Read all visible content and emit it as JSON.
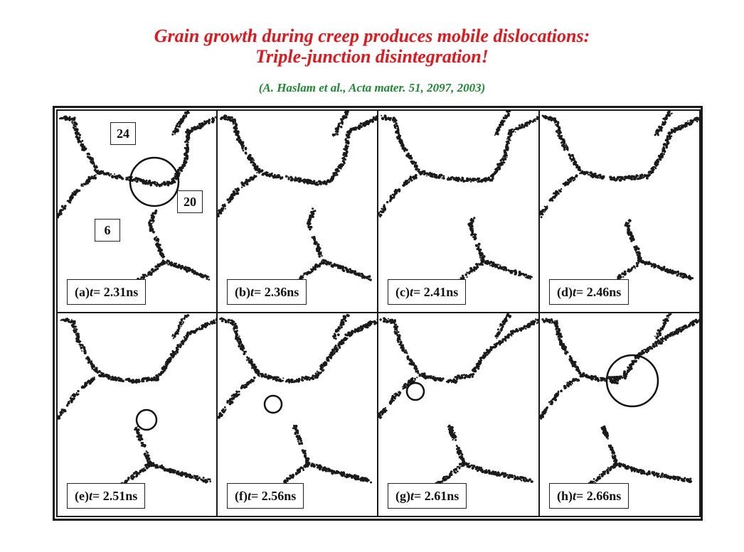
{
  "title": {
    "line1": "Grain growth during creep produces mobile dislocations:",
    "line2": "Triple-junction disintegration!"
  },
  "citation": "(A. Haslam et al., Acta mater. 51, 2097, 2003)",
  "figure": {
    "grain_labels": {
      "g24": "24",
      "g20": "20",
      "g6": "6"
    },
    "panels": [
      {
        "id": "a",
        "prefix": "(a) ",
        "var": "t",
        "value": " = 2.31ns"
      },
      {
        "id": "b",
        "prefix": "(b) ",
        "var": "t",
        "value": " = 2.36ns"
      },
      {
        "id": "c",
        "prefix": "(c) ",
        "var": "t",
        "value": " = 2.41ns"
      },
      {
        "id": "d",
        "prefix": "(d) ",
        "var": "t",
        "value": " = 2.46ns"
      },
      {
        "id": "e",
        "prefix": "(e) ",
        "var": "t",
        "value": " = 2.51ns"
      },
      {
        "id": "f",
        "prefix": "(f) ",
        "var": "t",
        "value": " = 2.56ns"
      },
      {
        "id": "g",
        "prefix": "(g) ",
        "var": "t",
        "value": " = 2.61ns"
      },
      {
        "id": "h",
        "prefix": "(h) ",
        "var": "t",
        "value": " = 2.66ns"
      }
    ]
  },
  "colors": {
    "title": "#e3161b",
    "citation": "#1c8a2e",
    "boundary": "#1a1a1a"
  }
}
